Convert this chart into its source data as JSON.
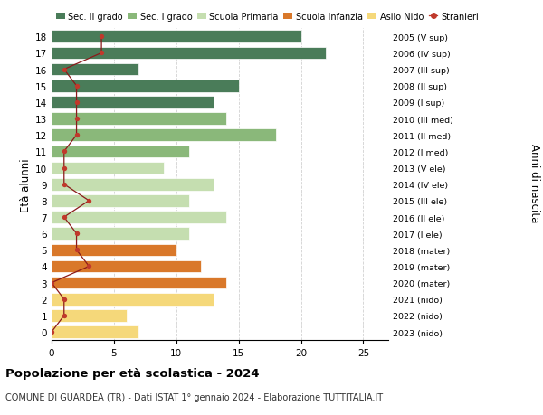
{
  "ages": [
    18,
    17,
    16,
    15,
    14,
    13,
    12,
    11,
    10,
    9,
    8,
    7,
    6,
    5,
    4,
    3,
    2,
    1,
    0
  ],
  "right_labels": [
    "2005 (V sup)",
    "2006 (IV sup)",
    "2007 (III sup)",
    "2008 (II sup)",
    "2009 (I sup)",
    "2010 (III med)",
    "2011 (II med)",
    "2012 (I med)",
    "2013 (V ele)",
    "2014 (IV ele)",
    "2015 (III ele)",
    "2016 (II ele)",
    "2017 (I ele)",
    "2018 (mater)",
    "2019 (mater)",
    "2020 (mater)",
    "2021 (nido)",
    "2022 (nido)",
    "2023 (nido)"
  ],
  "bar_values": [
    20,
    22,
    7,
    15,
    13,
    14,
    18,
    11,
    9,
    13,
    11,
    14,
    11,
    10,
    12,
    14,
    13,
    6,
    7
  ],
  "bar_colors": [
    "#4a7c59",
    "#4a7c59",
    "#4a7c59",
    "#4a7c59",
    "#4a7c59",
    "#8ab87a",
    "#8ab87a",
    "#8ab87a",
    "#c5deb0",
    "#c5deb0",
    "#c5deb0",
    "#c5deb0",
    "#c5deb0",
    "#d9782a",
    "#d9782a",
    "#d9782a",
    "#f5d87a",
    "#f5d87a",
    "#f5d87a"
  ],
  "stranieri_values": [
    4,
    4,
    1,
    2,
    2,
    2,
    2,
    1,
    1,
    1,
    3,
    1,
    2,
    2,
    3,
    0,
    1,
    1,
    0
  ],
  "legend_labels": [
    "Sec. II grado",
    "Sec. I grado",
    "Scuola Primaria",
    "Scuola Infanzia",
    "Asilo Nido",
    "Stranieri"
  ],
  "legend_colors": [
    "#4a7c59",
    "#8ab87a",
    "#c5deb0",
    "#d9782a",
    "#f5d87a",
    "#c0392b"
  ],
  "ylabel_left": "Età alunni",
  "ylabel_right": "Anni di nascita",
  "title": "Popolazione per età scolastica - 2024",
  "subtitle": "COMUNE DI GUARDEA (TR) - Dati ISTAT 1° gennaio 2024 - Elaborazione TUTTITALIA.IT",
  "xlim": [
    0,
    27
  ],
  "grid_color": "#cccccc"
}
